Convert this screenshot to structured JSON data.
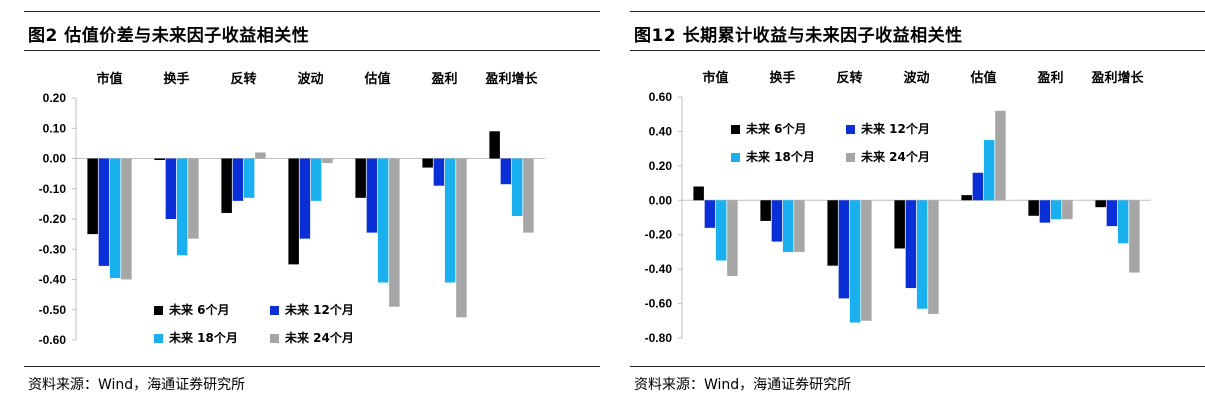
{
  "charts": [
    {
      "title": "图2  估值价差与未来因子收益相关性",
      "source": "资料来源：Wind，海通证券研究所"
    },
    {
      "title": "图12 长期累计收益与未来因子收益相关性",
      "source": "资料来源：Wind，海通证券研究所"
    }
  ],
  "colors": {
    "series": [
      "#000000",
      "#0a2fd6",
      "#1ab0f0",
      "#a6a6a6"
    ],
    "axis": "#bfbfbf",
    "rule": "#222222"
  },
  "chart_data": [
    {
      "type": "bar",
      "title": "图2  估值价差与未来因子收益相关性",
      "categories": [
        "市值",
        "换手",
        "反转",
        "波动",
        "估值",
        "盈利",
        "盈利增长"
      ],
      "ylim": [
        -0.6,
        0.2
      ],
      "yticks": [
        "0.20",
        "0.10",
        "0.00",
        "-0.10",
        "-0.20",
        "-0.30",
        "-0.40",
        "-0.50",
        "-0.60"
      ],
      "grid": false,
      "legend_position": "bottom-center",
      "series": [
        {
          "name": "未来 6个月",
          "values": [
            -0.25,
            -0.005,
            -0.18,
            -0.35,
            -0.13,
            -0.03,
            0.09
          ]
        },
        {
          "name": "未来 12个月",
          "values": [
            -0.355,
            -0.2,
            -0.14,
            -0.265,
            -0.245,
            -0.09,
            -0.085
          ]
        },
        {
          "name": "未来 18个月",
          "values": [
            -0.395,
            -0.32,
            -0.13,
            -0.14,
            -0.41,
            -0.41,
            -0.19
          ]
        },
        {
          "name": "未来 24个月",
          "values": [
            -0.4,
            -0.265,
            0.02,
            -0.015,
            -0.49,
            -0.525,
            -0.245
          ]
        }
      ]
    },
    {
      "type": "bar",
      "title": "图12 长期累计收益与未来因子收益相关性",
      "categories": [
        "市值",
        "换手",
        "反转",
        "波动",
        "估值",
        "盈利",
        "盈利增长"
      ],
      "ylim": [
        -0.8,
        0.6
      ],
      "yticks": [
        "0.60",
        "0.40",
        "0.20",
        "0.00",
        "-0.20",
        "-0.40",
        "-0.60",
        "-0.80"
      ],
      "grid": false,
      "legend_position": "top-left",
      "series": [
        {
          "name": "未来 6个月",
          "values": [
            0.08,
            -0.12,
            -0.38,
            -0.28,
            0.03,
            -0.09,
            -0.04
          ]
        },
        {
          "name": "未来 12个月",
          "values": [
            -0.16,
            -0.24,
            -0.57,
            -0.51,
            0.16,
            -0.13,
            -0.15
          ]
        },
        {
          "name": "未来 18个月",
          "values": [
            -0.35,
            -0.3,
            -0.71,
            -0.63,
            0.35,
            -0.11,
            -0.25
          ]
        },
        {
          "name": "未来 24个月",
          "values": [
            -0.44,
            -0.3,
            -0.7,
            -0.66,
            0.52,
            -0.11,
            -0.42
          ]
        }
      ]
    }
  ]
}
